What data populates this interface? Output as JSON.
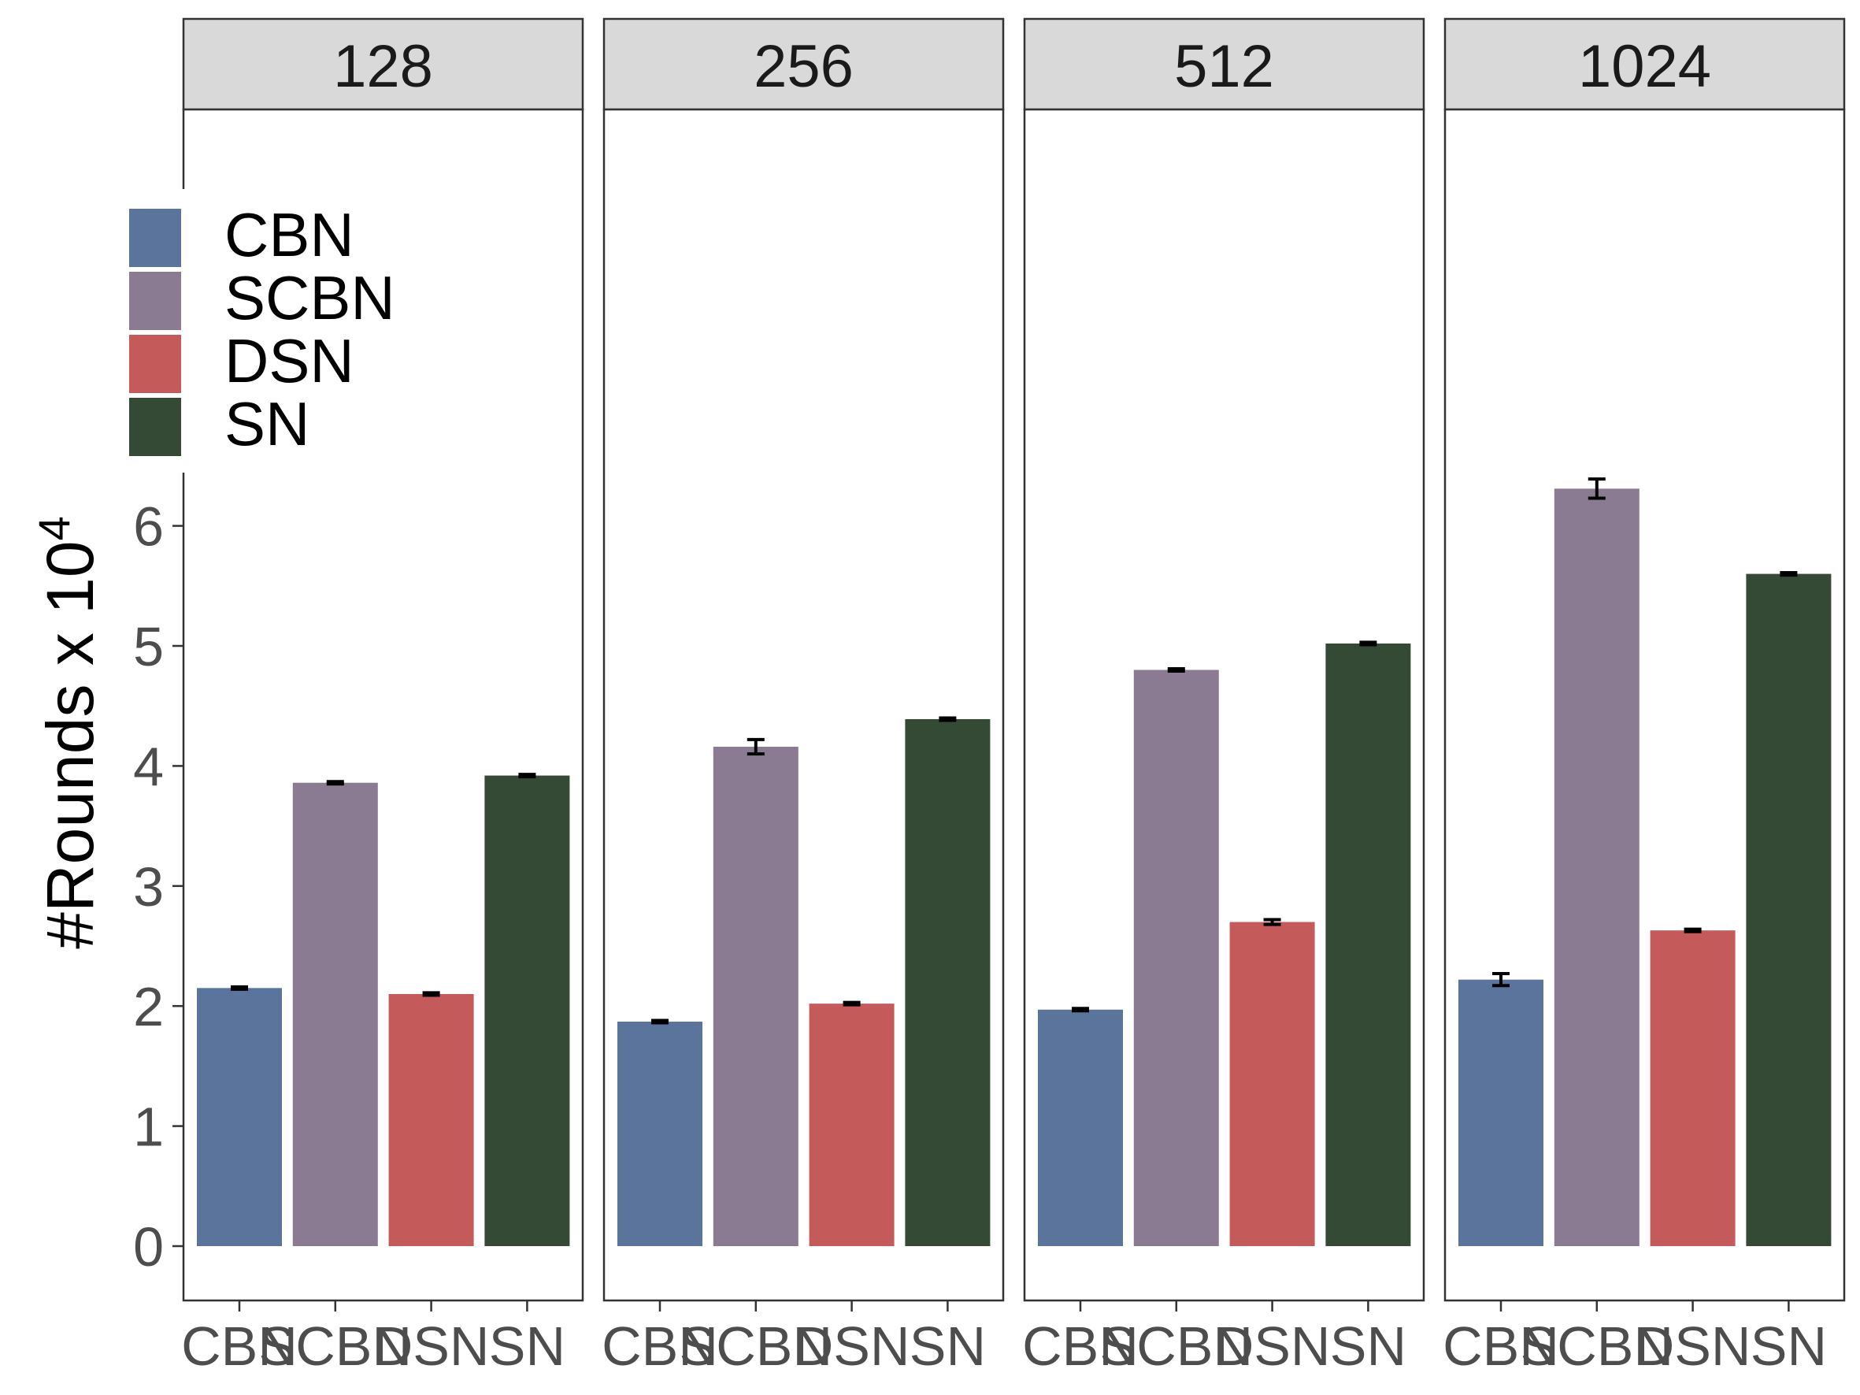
{
  "chart_data": {
    "type": "bar",
    "ylabel": "#Rounds x 10",
    "ylabel_superscript": "4",
    "ylim": [
      -0.45,
      9.1
    ],
    "yticks": [
      "0",
      "1",
      "2",
      "3",
      "4",
      "5",
      "6"
    ],
    "categories": [
      "CBN",
      "SCBN",
      "DSN",
      "SN"
    ],
    "colors": {
      "CBN": "#5b749c",
      "SCBN": "#8a7b93",
      "DSN": "#c45a5a",
      "SN": "#344a34"
    },
    "legend": {
      "position": "top-left",
      "entries": [
        "CBN",
        "SCBN",
        "DSN",
        "SN"
      ]
    },
    "grid": false,
    "panels": [
      {
        "label": "128",
        "values": [
          2.15,
          3.86,
          2.1,
          3.92
        ],
        "errors": [
          0.01,
          0.01,
          0.01,
          0.01
        ]
      },
      {
        "label": "256",
        "values": [
          1.87,
          4.16,
          2.02,
          4.39
        ],
        "errors": [
          0.01,
          0.06,
          0.01,
          0.01
        ]
      },
      {
        "label": "512",
        "values": [
          1.97,
          4.8,
          2.7,
          5.02
        ],
        "errors": [
          0.01,
          0.01,
          0.02,
          0.01
        ]
      },
      {
        "label": "1024",
        "values": [
          2.22,
          6.31,
          2.63,
          5.6
        ],
        "errors": [
          0.05,
          0.08,
          0.01,
          0.01
        ]
      }
    ]
  }
}
